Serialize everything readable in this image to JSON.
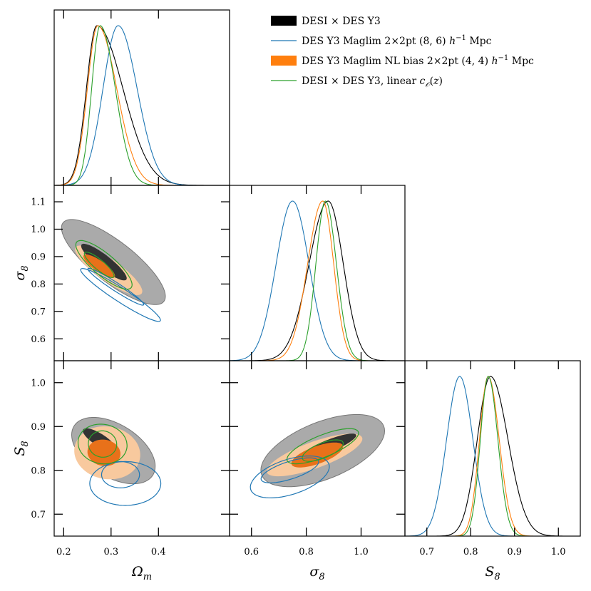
{
  "chart_data": {
    "type": "corner",
    "parameters": [
      {
        "key": "Om",
        "axis_label": "Ω",
        "axis_label_sub": "m",
        "range": [
          0.18,
          0.55
        ],
        "ticks": [
          "0.2",
          "0.3",
          "0.4"
        ],
        "tick_values": [
          0.2,
          0.3,
          0.4
        ]
      },
      {
        "key": "s8",
        "axis_label": "σ",
        "axis_label_sub": "8",
        "range": [
          0.52,
          1.16
        ],
        "ticks": [
          "0.6",
          "0.8",
          "1.0"
        ],
        "tick_values": [
          0.6,
          0.8,
          1.0
        ],
        "y_ticks": [
          "0.6",
          "0.7",
          "0.8",
          "0.9",
          "1.0",
          "1.1"
        ],
        "y_tick_values": [
          0.6,
          0.7,
          0.8,
          0.9,
          1.0,
          1.1
        ]
      },
      {
        "key": "S8",
        "axis_label": "S",
        "axis_label_sub": "8",
        "range": [
          0.65,
          1.05
        ],
        "ticks": [
          "0.7",
          "0.8",
          "0.9",
          "1.0"
        ],
        "tick_values": [
          0.7,
          0.8,
          0.9,
          1.0
        ],
        "y_ticks": [
          "0.7",
          "0.8",
          "0.9",
          "1.0"
        ],
        "y_tick_values": [
          0.7,
          0.8,
          0.9,
          1.0
        ]
      }
    ],
    "series": [
      {
        "name": "DESI × DES Y3",
        "name_html": "DESI × DES Y3",
        "color": "#000000",
        "fill68": "#333333",
        "fill95": "#aaaaaa",
        "filled": true,
        "mean": {
          "Om": 0.27,
          "s8": 0.88,
          "S8": 0.845
        },
        "sigma1d": {
          "Om": [
            0.022,
            0.055
          ],
          "s8": [
            0.07,
            0.055
          ],
          "S8": [
            0.03,
            0.04
          ]
        },
        "ellipse": {
          "Om_s8": {
            "c95": [
              0.305,
              0.88
            ],
            "r95": [
              0.135,
              0.075
            ],
            "c68": [
              0.285,
              0.88
            ],
            "r68": [
              0.06,
              0.025
            ],
            "angle": -38
          },
          "Om_S8": {
            "c95": [
              0.305,
              0.845
            ],
            "r95": [
              0.098,
              0.06
            ],
            "c68": [
              0.275,
              0.87
            ],
            "r68": [
              0.04,
              0.014
            ],
            "angle": -32
          },
          "s8_S8": {
            "c95": [
              0.86,
              0.845
            ],
            "r95": [
              0.24,
              0.065
            ],
            "c68": [
              0.88,
              0.855
            ],
            "r68": [
              0.11,
              0.014
            ],
            "angle": 22
          }
        }
      },
      {
        "name": "DES Y3 Maglim 2×2pt (8, 6) h⁻¹ Mpc",
        "name_html": "DES Y3 Maglim 2×2pt (8, 6) <tspan font-style=\"italic\">h</tspan><tspan dy=\"-6\" font-size=\"10\">−1</tspan><tspan dy=\"6\"> Mpc</tspan>",
        "color": "#1f77b4",
        "filled": false,
        "mean": {
          "Om": 0.315,
          "s8": 0.75,
          "S8": 0.775
        },
        "sigma1d": {
          "Om": [
            0.032,
            0.04
          ],
          "s8": [
            0.06,
            0.06
          ],
          "S8": [
            0.03,
            0.03
          ]
        },
        "ellipse": {
          "Om_s8": {
            "c95": [
              0.32,
              0.76
            ],
            "r95": [
              0.1,
              0.025
            ],
            "c68": [
              0.31,
              0.79
            ],
            "r68": [
              0.07,
              0.015
            ],
            "angle": -33
          },
          "Om_S8": {
            "c95": [
              0.33,
              0.77
            ],
            "r95": [
              0.075,
              0.05
            ],
            "c68": [
              0.32,
              0.79
            ],
            "r68": [
              0.04,
              0.03
            ],
            "angle": 0
          },
          "s8_S8": {
            "c95": [
              0.74,
              0.785
            ],
            "r95": [
              0.15,
              0.04
            ],
            "c68": [
              0.74,
              0.8
            ],
            "r68": [
              0.11,
              0.02
            ],
            "angle": 18
          }
        }
      },
      {
        "name": "DES Y3 Maglim NL bias 2×2pt (4, 4) h⁻¹ Mpc",
        "name_html": "DES Y3 Maglim NL bias 2×2pt (4, 4) <tspan font-style=\"italic\">h</tspan><tspan dy=\"-6\" font-size=\"10\">−1</tspan><tspan dy=\"6\"> Mpc</tspan>",
        "color": "#ff7f0e",
        "fill68": "#e8711a",
        "fill95": "#f8c99e",
        "filled": true,
        "mean": {
          "Om": 0.272,
          "s8": 0.86,
          "S8": 0.84
        },
        "sigma1d": {
          "Om": [
            0.022,
            0.04
          ],
          "s8": [
            0.055,
            0.04
          ],
          "S8": [
            0.02,
            0.025
          ]
        },
        "ellipse": {
          "Om_s8": {
            "c95": [
              0.295,
              0.85
            ],
            "r95": [
              0.085,
              0.04
            ],
            "c68": [
              0.275,
              0.865
            ],
            "r68": [
              0.04,
              0.02
            ],
            "angle": -35
          },
          "Om_S8": {
            "c95": [
              0.292,
              0.84
            ],
            "r95": [
              0.07,
              0.06
            ],
            "c68": [
              0.285,
              0.84
            ],
            "r68": [
              0.035,
              0.03
            ],
            "angle": -10
          },
          "s8_S8": {
            "c95": [
              0.83,
              0.835
            ],
            "r95": [
              0.185,
              0.03
            ],
            "c68": [
              0.84,
              0.835
            ],
            "r68": [
              0.1,
              0.02
            ],
            "angle": 20
          }
        }
      },
      {
        "name": "DESI × DES Y3, linear c𝒪(z)",
        "name_html": "DESI × DES Y3, linear <tspan font-style=\"italic\">c</tspan><tspan dy=\"4\" font-size=\"10\" font-style=\"italic\">𝒪</tspan><tspan dy=\"-4\">(</tspan><tspan font-style=\"italic\">z</tspan><tspan>)</tspan>",
        "color": "#2ca02c",
        "filled": false,
        "mean": {
          "Om": 0.277,
          "s8": 0.87,
          "S8": 0.84
        },
        "sigma1d": {
          "Om": [
            0.018,
            0.032
          ],
          "s8": [
            0.035,
            0.04
          ],
          "S8": [
            0.018,
            0.022
          ]
        },
        "ellipse": {
          "Om_s8": {
            "c95": [
              0.285,
              0.87
            ],
            "r95": [
              0.075,
              0.04
            ],
            "c68": [
              0.275,
              0.87
            ],
            "r68": [
              0.04,
              0.018
            ],
            "angle": -40
          },
          "Om_S8": {
            "c95": [
              0.282,
              0.86
            ],
            "r95": [
              0.052,
              0.045
            ],
            "c68": [
              0.282,
              0.86
            ],
            "r68": [
              0.03,
              0.03
            ],
            "angle": -10
          },
          "s8_S8": {
            "c95": [
              0.86,
              0.855
            ],
            "r95": [
              0.14,
              0.025
            ],
            "c68": [
              0.86,
              0.845
            ],
            "r68": [
              0.08,
              0.017
            ],
            "angle": 22
          }
        }
      }
    ],
    "grid": false,
    "legend_position": "top-right"
  }
}
